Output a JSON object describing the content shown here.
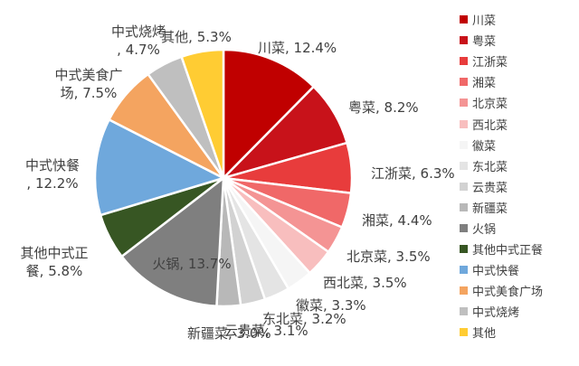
{
  "chart_data": {
    "type": "pie",
    "legend_position": "right",
    "slices": [
      {
        "name": "川菜",
        "value": 12.4,
        "label": "川菜, 12.4%",
        "color": "#C00000"
      },
      {
        "name": "粤菜",
        "value": 8.2,
        "label": "粤菜, 8.2%",
        "color": "#C8121A"
      },
      {
        "name": "江浙菜",
        "value": 6.3,
        "label": "江浙菜, 6.3%",
        "color": "#E83C3C"
      },
      {
        "name": "湘菜",
        "value": 4.4,
        "label": "湘菜, 4.4%",
        "color": "#F06868"
      },
      {
        "name": "北京菜",
        "value": 3.5,
        "label": "北京菜, 3.5%",
        "color": "#F49494"
      },
      {
        "name": "西北菜",
        "value": 3.5,
        "label": "西北菜, 3.5%",
        "color": "#F8BEBE"
      },
      {
        "name": "徽菜",
        "value": 3.3,
        "label": "徽菜, 3.3%",
        "color": "#F5F5F5"
      },
      {
        "name": "东北菜",
        "value": 3.2,
        "label": "东北菜, 3.2%",
        "color": "#E4E4E4"
      },
      {
        "name": "云贵菜",
        "value": 3.1,
        "label": "云贵菜, 3.1%",
        "color": "#D2D2D2"
      },
      {
        "name": "新疆菜",
        "value": 3.0,
        "label": "新疆菜, 3.0%",
        "color": "#B8B8B8"
      },
      {
        "name": "火锅",
        "value": 13.7,
        "label": "火锅, 13.7%",
        "color": "#7F7F7F"
      },
      {
        "name": "其他中式正餐",
        "value": 5.8,
        "label": "其他中式正餐, 5.8%",
        "color": "#375623"
      },
      {
        "name": "中式快餐",
        "value": 12.2,
        "label": "中式快餐, 12.2%",
        "color": "#6FA8DC"
      },
      {
        "name": "中式美食广场",
        "value": 7.5,
        "label": "中式美食广场, 7.5%",
        "color": "#F4A460"
      },
      {
        "name": "中式烧烤",
        "value": 4.7,
        "label": "中式烧烤, 4.7%",
        "color": "#BFBFBF"
      },
      {
        "name": "其他",
        "value": 5.3,
        "label": "其他, 5.3%",
        "color": "#FFCC33"
      }
    ]
  }
}
